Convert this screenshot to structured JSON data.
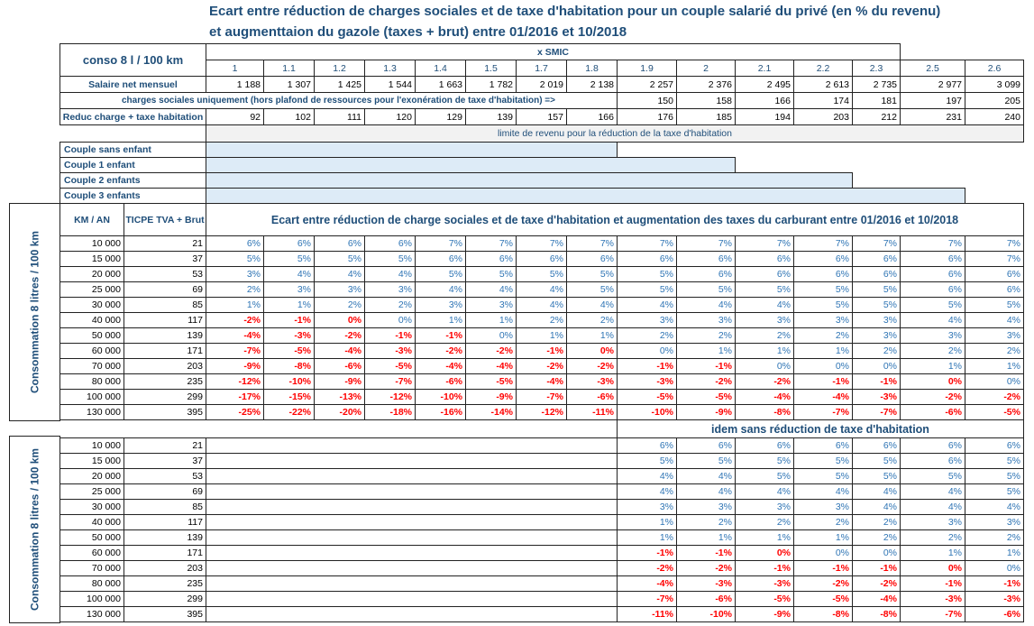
{
  "title": [
    "Ecart entre réduction de charges sociales et de taxe d'habitation pour un couple salarié du privé  (en % du revenu)",
    "et augmenttaion du gazole (taxes + brut)  entre 01/2016 et 10/2018"
  ],
  "header": {
    "conso": "conso 8 l / 100 km",
    "smic_label": "x  SMIC",
    "smic": [
      1,
      1.1,
      1.2,
      1.3,
      1.4,
      1.5,
      1.7,
      1.8,
      1.9,
      2,
      2.1,
      2.2,
      2.3,
      2.5,
      2.6
    ]
  },
  "salaire": {
    "label": "Salaire net mensuel",
    "values": [
      "1 188",
      "1 307",
      "1 425",
      "1 544",
      "1 663",
      "1 782",
      "2 019",
      "2 138",
      "2 257",
      "2 376",
      "2 495",
      "2 613",
      "2 735",
      "2 977",
      "3 099"
    ]
  },
  "charges": {
    "label": "charges sociales uniquement (hors plafond de ressources pour l'exonération de taxe d'habitation) =>",
    "values": [
      150,
      158,
      166,
      174,
      181,
      197,
      205
    ]
  },
  "reduc": {
    "label": "Reduc charge + taxe habitation",
    "values": [
      92,
      102,
      111,
      120,
      129,
      139,
      157,
      166,
      176,
      185,
      194,
      203,
      212,
      231,
      240
    ]
  },
  "limite": "limite de revenu pour la réduction de la taxe d'habitation",
  "couples": [
    "Couple sans enfant",
    "Couple 1 enfant",
    "Couple 2 enfants",
    "Couple 3 enfants"
  ],
  "colors": {
    "positive": "#2f75b5",
    "negative": "#ff0000",
    "limit_bar": "#ddebf7",
    "limite_bg": "#f2f2f2"
  },
  "block1": {
    "side_label": "Consommation 8 litres / 100 km",
    "km_header": "KM / AN",
    "ticpe_header": "TICPE  TVA + Brut",
    "title": "Ecart entre réduction de charge sociales et de taxe d'habitation et augmentation des taxes du carburant entre 01/2016 et 10/2018",
    "rows": [
      {
        "km": "10 000",
        "ticpe": 21,
        "red_cells": 0,
        "cells": [
          "6%",
          "6%",
          "6%",
          "6%",
          "7%",
          "7%",
          "7%",
          "7%",
          "7%",
          "7%",
          "7%",
          "7%",
          "7%",
          "7%",
          "7%"
        ]
      },
      {
        "km": "15 000",
        "ticpe": 37,
        "red_cells": 0,
        "cells": [
          "5%",
          "5%",
          "5%",
          "5%",
          "6%",
          "6%",
          "6%",
          "6%",
          "6%",
          "6%",
          "6%",
          "6%",
          "6%",
          "6%",
          "7%"
        ]
      },
      {
        "km": "20 000",
        "ticpe": 53,
        "red_cells": 0,
        "cells": [
          "3%",
          "4%",
          "4%",
          "4%",
          "5%",
          "5%",
          "5%",
          "5%",
          "5%",
          "6%",
          "6%",
          "6%",
          "6%",
          "6%",
          "6%"
        ]
      },
      {
        "km": "25 000",
        "ticpe": 69,
        "red_cells": 0,
        "cells": [
          "2%",
          "3%",
          "3%",
          "3%",
          "4%",
          "4%",
          "4%",
          "5%",
          "5%",
          "5%",
          "5%",
          "5%",
          "5%",
          "6%",
          "6%"
        ]
      },
      {
        "km": "30 000",
        "ticpe": 85,
        "red_cells": 0,
        "cells": [
          "1%",
          "1%",
          "2%",
          "2%",
          "3%",
          "3%",
          "4%",
          "4%",
          "4%",
          "4%",
          "4%",
          "5%",
          "5%",
          "5%",
          "5%"
        ]
      },
      {
        "km": "40 000",
        "ticpe": 117,
        "red_cells": 3,
        "cells": [
          "-2%",
          "-1%",
          "0%",
          "0%",
          "1%",
          "1%",
          "2%",
          "2%",
          "3%",
          "3%",
          "3%",
          "3%",
          "3%",
          "4%",
          "4%"
        ]
      },
      {
        "km": "50 000",
        "ticpe": 139,
        "red_cells": 5,
        "cells": [
          "-4%",
          "-3%",
          "-2%",
          "-1%",
          "-1%",
          "0%",
          "1%",
          "1%",
          "2%",
          "2%",
          "2%",
          "2%",
          "3%",
          "3%",
          "3%"
        ]
      },
      {
        "km": "60 000",
        "ticpe": 171,
        "red_cells": 8,
        "cells": [
          "-7%",
          "-5%",
          "-4%",
          "-3%",
          "-2%",
          "-2%",
          "-1%",
          "0%",
          "0%",
          "1%",
          "1%",
          "1%",
          "2%",
          "2%",
          "2%"
        ]
      },
      {
        "km": "70 000",
        "ticpe": 203,
        "red_cells": 10,
        "cells": [
          "-9%",
          "-8%",
          "-6%",
          "-5%",
          "-4%",
          "-4%",
          "-2%",
          "-2%",
          "-1%",
          "-1%",
          "0%",
          "0%",
          "0%",
          "1%",
          "1%"
        ]
      },
      {
        "km": "80 000",
        "ticpe": 235,
        "red_cells": 14,
        "cells": [
          "-12%",
          "-10%",
          "-9%",
          "-7%",
          "-6%",
          "-5%",
          "-4%",
          "-3%",
          "-3%",
          "-2%",
          "-2%",
          "-1%",
          "-1%",
          "0%",
          "0%"
        ]
      },
      {
        "km": "100 000",
        "ticpe": 299,
        "red_cells": 15,
        "cells": [
          "-17%",
          "-15%",
          "-13%",
          "-12%",
          "-10%",
          "-9%",
          "-7%",
          "-6%",
          "-5%",
          "-5%",
          "-4%",
          "-4%",
          "-3%",
          "-2%",
          "-2%"
        ]
      },
      {
        "km": "130 000",
        "ticpe": 395,
        "red_cells": 15,
        "cells": [
          "-25%",
          "-22%",
          "-20%",
          "-18%",
          "-16%",
          "-14%",
          "-12%",
          "-11%",
          "-10%",
          "-9%",
          "-8%",
          "-7%",
          "-7%",
          "-6%",
          "-5%"
        ]
      }
    ]
  },
  "block2": {
    "side_label": "Consommation 8 litres / 100 km",
    "title": "idem sans réduction de taxe d'habitation",
    "rows": [
      {
        "km": "10 000",
        "ticpe": 21,
        "red_cells": 0,
        "cells": [
          "6%",
          "6%",
          "6%",
          "6%",
          "6%",
          "6%",
          "6%"
        ]
      },
      {
        "km": "15 000",
        "ticpe": 37,
        "red_cells": 0,
        "cells": [
          "5%",
          "5%",
          "5%",
          "5%",
          "5%",
          "6%",
          "5%"
        ]
      },
      {
        "km": "20 000",
        "ticpe": 53,
        "red_cells": 0,
        "cells": [
          "4%",
          "4%",
          "5%",
          "5%",
          "5%",
          "5%",
          "5%"
        ]
      },
      {
        "km": "25 000",
        "ticpe": 69,
        "red_cells": 0,
        "cells": [
          "4%",
          "4%",
          "4%",
          "4%",
          "4%",
          "4%",
          "5%"
        ]
      },
      {
        "km": "30 000",
        "ticpe": 85,
        "red_cells": 0,
        "cells": [
          "3%",
          "3%",
          "3%",
          "3%",
          "4%",
          "4%",
          "4%"
        ]
      },
      {
        "km": "40 000",
        "ticpe": 117,
        "red_cells": 0,
        "cells": [
          "1%",
          "2%",
          "2%",
          "2%",
          "2%",
          "3%",
          "3%"
        ]
      },
      {
        "km": "50 000",
        "ticpe": 139,
        "red_cells": 0,
        "cells": [
          "1%",
          "1%",
          "1%",
          "1%",
          "2%",
          "2%",
          "2%"
        ]
      },
      {
        "km": "60 000",
        "ticpe": 171,
        "red_cells": 3,
        "cells": [
          "-1%",
          "-1%",
          "0%",
          "0%",
          "0%",
          "1%",
          "1%"
        ]
      },
      {
        "km": "70 000",
        "ticpe": 203,
        "red_cells": 6,
        "cells": [
          "-2%",
          "-2%",
          "-1%",
          "-1%",
          "-1%",
          "0%",
          "0%"
        ]
      },
      {
        "km": "80 000",
        "ticpe": 235,
        "red_cells": 7,
        "cells": [
          "-4%",
          "-3%",
          "-3%",
          "-2%",
          "-2%",
          "-1%",
          "-1%"
        ]
      },
      {
        "km": "100 000",
        "ticpe": 299,
        "red_cells": 7,
        "cells": [
          "-7%",
          "-6%",
          "-5%",
          "-5%",
          "-4%",
          "-3%",
          "-3%"
        ]
      },
      {
        "km": "130 000",
        "ticpe": 395,
        "red_cells": 7,
        "cells": [
          "-11%",
          "-10%",
          "-9%",
          "-8%",
          "-8%",
          "-7%",
          "-6%"
        ]
      }
    ]
  }
}
